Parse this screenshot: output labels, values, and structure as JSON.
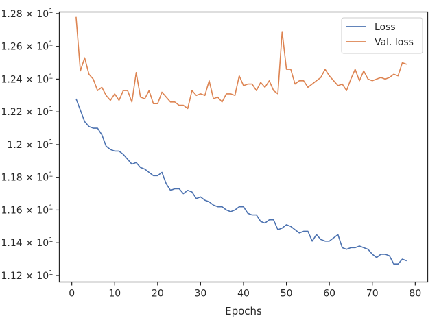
{
  "chart_data": {
    "type": "line",
    "title": "",
    "xlabel": "Epochs",
    "ylabel": "",
    "x_ticks": [
      0,
      10,
      20,
      30,
      40,
      50,
      60,
      70,
      80
    ],
    "y_ticks": [
      11.2,
      11.4,
      11.6,
      11.8,
      12.0,
      12.2,
      12.4,
      12.6,
      12.8
    ],
    "y_tick_labels": [
      "1.12 × 10^1",
      "1.14 × 10^1",
      "1.16 × 10^1",
      "1.18 × 10^1",
      "1.2 × 10^1",
      "1.22 × 10^1",
      "1.24 × 10^1",
      "1.26 × 10^1",
      "1.28 × 10^1"
    ],
    "xlim": [
      -2.9,
      82.9
    ],
    "ylim": [
      11.16,
      12.81
    ],
    "grid": false,
    "legend_position": "top-right",
    "colors": {
      "axes": "#262626"
    },
    "x": [
      1,
      2,
      3,
      4,
      5,
      6,
      7,
      8,
      9,
      10,
      11,
      12,
      13,
      14,
      15,
      16,
      17,
      18,
      19,
      20,
      21,
      22,
      23,
      24,
      25,
      26,
      27,
      28,
      29,
      30,
      31,
      32,
      33,
      34,
      35,
      36,
      37,
      38,
      39,
      40,
      41,
      42,
      43,
      44,
      45,
      46,
      47,
      48,
      49,
      50,
      51,
      52,
      53,
      54,
      55,
      56,
      57,
      58,
      59,
      60,
      61,
      62,
      63,
      64,
      65,
      66,
      67,
      68,
      69,
      70,
      71,
      72,
      73,
      74,
      75,
      76,
      77,
      78
    ],
    "series": [
      {
        "name": "Loss",
        "color": "#4c72b0",
        "values": [
          12.28,
          12.21,
          12.14,
          12.11,
          12.1,
          12.1,
          12.06,
          11.99,
          11.97,
          11.96,
          11.96,
          11.94,
          11.91,
          11.88,
          11.89,
          11.86,
          11.85,
          11.83,
          11.81,
          11.81,
          11.83,
          11.76,
          11.72,
          11.73,
          11.73,
          11.7,
          11.72,
          11.71,
          11.67,
          11.68,
          11.66,
          11.65,
          11.63,
          11.62,
          11.62,
          11.6,
          11.59,
          11.6,
          11.62,
          11.62,
          11.58,
          11.57,
          11.57,
          11.53,
          11.52,
          11.54,
          11.54,
          11.48,
          11.49,
          11.51,
          11.5,
          11.48,
          11.46,
          11.47,
          11.47,
          11.41,
          11.45,
          11.42,
          11.41,
          11.41,
          11.43,
          11.45,
          11.37,
          11.36,
          11.37,
          11.37,
          11.38,
          11.37,
          11.36,
          11.33,
          11.31,
          11.33,
          11.33,
          11.32,
          11.27,
          11.27,
          11.3,
          11.29
        ]
      },
      {
        "name": "Val. loss",
        "color": "#dd8452",
        "values": [
          12.78,
          12.45,
          12.53,
          12.43,
          12.4,
          12.33,
          12.35,
          12.3,
          12.27,
          12.31,
          12.27,
          12.33,
          12.33,
          12.26,
          12.44,
          12.29,
          12.28,
          12.33,
          12.25,
          12.25,
          12.32,
          12.29,
          12.26,
          12.26,
          12.24,
          12.24,
          12.22,
          12.33,
          12.3,
          12.31,
          12.3,
          12.39,
          12.28,
          12.29,
          12.26,
          12.31,
          12.31,
          12.3,
          12.42,
          12.36,
          12.37,
          12.37,
          12.33,
          12.38,
          12.35,
          12.39,
          12.33,
          12.31,
          12.69,
          12.46,
          12.46,
          12.37,
          12.39,
          12.39,
          12.35,
          12.37,
          12.39,
          12.41,
          12.46,
          12.42,
          12.39,
          12.36,
          12.37,
          12.33,
          12.4,
          12.46,
          12.39,
          12.45,
          12.4,
          12.39,
          12.4,
          12.41,
          12.4,
          12.41,
          12.43,
          12.42,
          12.5,
          12.49
        ]
      }
    ]
  }
}
